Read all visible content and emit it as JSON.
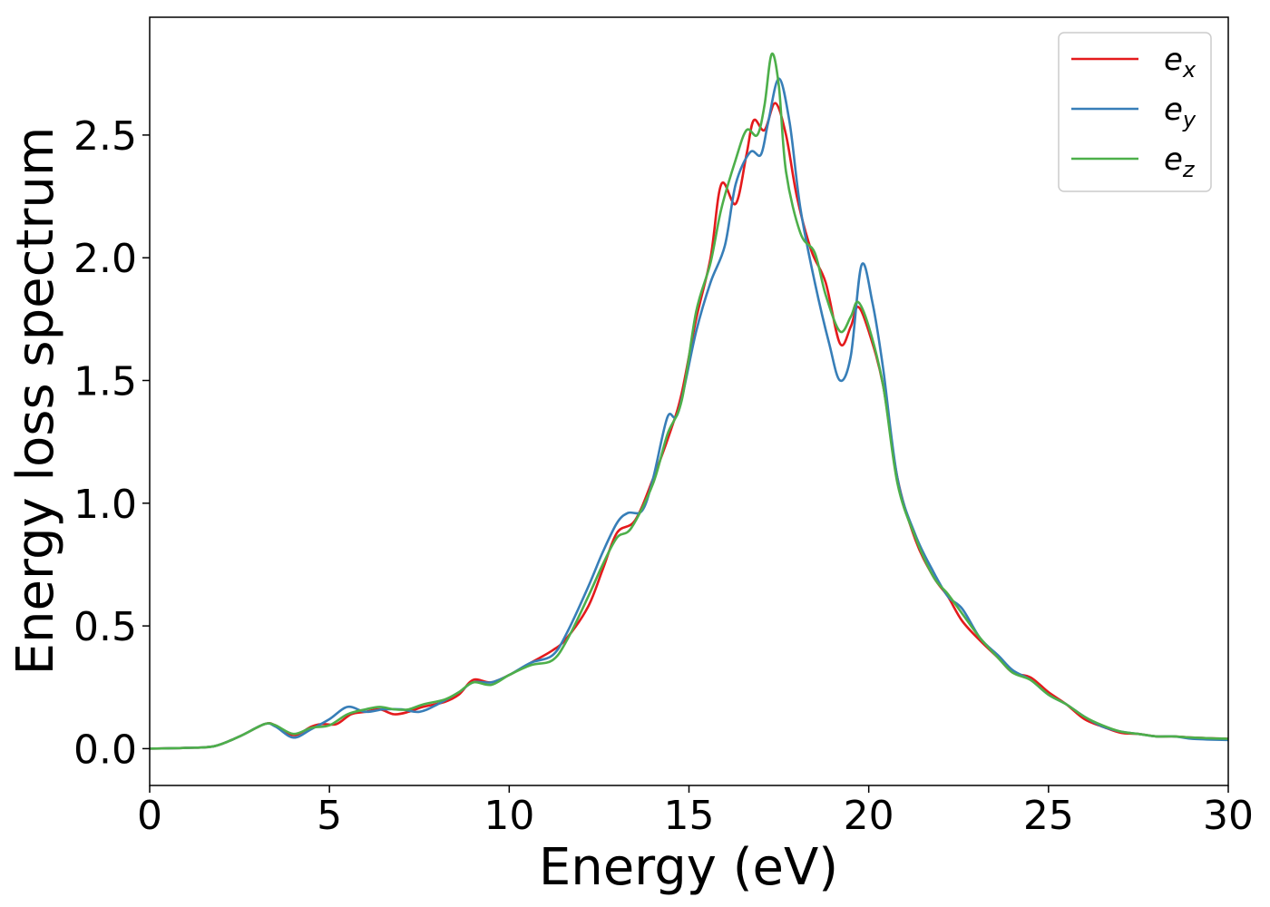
{
  "chart_data": {
    "type": "line",
    "xlabel": "Energy (eV)",
    "ylabel": "Energy loss spectrum",
    "xlim": [
      0,
      30
    ],
    "ylim": [
      -0.15,
      2.98
    ],
    "xticks": [
      0,
      5,
      10,
      15,
      20,
      25,
      30
    ],
    "xtick_labels": [
      "0",
      "5",
      "10",
      "15",
      "20",
      "25",
      "30"
    ],
    "yticks": [
      0.0,
      0.5,
      1.0,
      1.5,
      2.0,
      2.5
    ],
    "ytick_labels": [
      "0.0",
      "0.5",
      "1.0",
      "1.5",
      "2.0",
      "2.5"
    ],
    "grid": false,
    "legend_position": "top-right",
    "series": [
      {
        "name_base": "e",
        "name_sub": "x",
        "color": "#e41a1c",
        "points": [
          [
            0,
            0
          ],
          [
            1,
            0.003
          ],
          [
            1.8,
            0.01
          ],
          [
            2.5,
            0.05
          ],
          [
            3.2,
            0.1
          ],
          [
            3.5,
            0.095
          ],
          [
            4,
            0.055
          ],
          [
            4.5,
            0.09
          ],
          [
            4.8,
            0.1
          ],
          [
            5.2,
            0.1
          ],
          [
            5.6,
            0.14
          ],
          [
            6,
            0.15
          ],
          [
            6.4,
            0.16
          ],
          [
            6.8,
            0.14
          ],
          [
            7.2,
            0.15
          ],
          [
            7.6,
            0.17
          ],
          [
            8.2,
            0.19
          ],
          [
            8.6,
            0.22
          ],
          [
            9,
            0.28
          ],
          [
            9.5,
            0.27
          ],
          [
            10,
            0.3
          ],
          [
            10.6,
            0.35
          ],
          [
            11.2,
            0.4
          ],
          [
            11.6,
            0.45
          ],
          [
            12.2,
            0.58
          ],
          [
            12.6,
            0.73
          ],
          [
            13,
            0.88
          ],
          [
            13.5,
            0.93
          ],
          [
            14,
            1.1
          ],
          [
            14.5,
            1.3
          ],
          [
            14.8,
            1.45
          ],
          [
            15.2,
            1.75
          ],
          [
            15.6,
            2.0
          ],
          [
            15.9,
            2.3
          ],
          [
            16.3,
            2.22
          ],
          [
            16.6,
            2.42
          ],
          [
            16.8,
            2.56
          ],
          [
            17.1,
            2.52
          ],
          [
            17.4,
            2.63
          ],
          [
            17.7,
            2.5
          ],
          [
            18,
            2.25
          ],
          [
            18.4,
            2.03
          ],
          [
            18.8,
            1.9
          ],
          [
            19.2,
            1.65
          ],
          [
            19.5,
            1.72
          ],
          [
            19.7,
            1.8
          ],
          [
            20,
            1.7
          ],
          [
            20.4,
            1.48
          ],
          [
            20.8,
            1.1
          ],
          [
            21.3,
            0.85
          ],
          [
            21.8,
            0.7
          ],
          [
            22.2,
            0.62
          ],
          [
            22.6,
            0.52
          ],
          [
            23.1,
            0.44
          ],
          [
            23.6,
            0.37
          ],
          [
            24,
            0.31
          ],
          [
            24.5,
            0.29
          ],
          [
            25,
            0.23
          ],
          [
            25.5,
            0.18
          ],
          [
            26,
            0.12
          ],
          [
            26.5,
            0.09
          ],
          [
            27,
            0.065
          ],
          [
            27.5,
            0.06
          ],
          [
            28,
            0.05
          ],
          [
            28.5,
            0.05
          ],
          [
            29,
            0.045
          ],
          [
            30,
            0.04
          ]
        ]
      },
      {
        "name_base": "e",
        "name_sub": "y",
        "color": "#377eb8",
        "points": [
          [
            0,
            0
          ],
          [
            1,
            0.003
          ],
          [
            1.8,
            0.01
          ],
          [
            2.5,
            0.05
          ],
          [
            3.2,
            0.1
          ],
          [
            3.5,
            0.09
          ],
          [
            4,
            0.045
          ],
          [
            4.5,
            0.08
          ],
          [
            5,
            0.12
          ],
          [
            5.5,
            0.17
          ],
          [
            6,
            0.15
          ],
          [
            6.5,
            0.16
          ],
          [
            7,
            0.16
          ],
          [
            7.5,
            0.15
          ],
          [
            8,
            0.18
          ],
          [
            8.6,
            0.23
          ],
          [
            9,
            0.27
          ],
          [
            9.5,
            0.27
          ],
          [
            10,
            0.3
          ],
          [
            10.6,
            0.35
          ],
          [
            11.2,
            0.38
          ],
          [
            11.6,
            0.47
          ],
          [
            12.2,
            0.66
          ],
          [
            12.6,
            0.8
          ],
          [
            13,
            0.92
          ],
          [
            13.3,
            0.96
          ],
          [
            13.7,
            0.97
          ],
          [
            14,
            1.1
          ],
          [
            14.4,
            1.35
          ],
          [
            14.7,
            1.37
          ],
          [
            15.2,
            1.7
          ],
          [
            15.6,
            1.9
          ],
          [
            16,
            2.05
          ],
          [
            16.3,
            2.3
          ],
          [
            16.7,
            2.43
          ],
          [
            17,
            2.42
          ],
          [
            17.2,
            2.55
          ],
          [
            17.5,
            2.73
          ],
          [
            17.8,
            2.55
          ],
          [
            18.1,
            2.2
          ],
          [
            18.5,
            1.9
          ],
          [
            18.9,
            1.65
          ],
          [
            19.2,
            1.5
          ],
          [
            19.5,
            1.6
          ],
          [
            19.8,
            1.97
          ],
          [
            20.1,
            1.82
          ],
          [
            20.4,
            1.55
          ],
          [
            20.8,
            1.1
          ],
          [
            21.3,
            0.87
          ],
          [
            21.8,
            0.72
          ],
          [
            22.2,
            0.62
          ],
          [
            22.6,
            0.57
          ],
          [
            23.1,
            0.45
          ],
          [
            23.6,
            0.38
          ],
          [
            24,
            0.32
          ],
          [
            24.5,
            0.28
          ],
          [
            25,
            0.22
          ],
          [
            25.5,
            0.18
          ],
          [
            26,
            0.13
          ],
          [
            26.5,
            0.09
          ],
          [
            27,
            0.07
          ],
          [
            27.5,
            0.06
          ],
          [
            28,
            0.05
          ],
          [
            28.5,
            0.05
          ],
          [
            29,
            0.04
          ],
          [
            30,
            0.035
          ]
        ]
      },
      {
        "name_base": "e",
        "name_sub": "z",
        "color": "#4daf4a",
        "points": [
          [
            0,
            0
          ],
          [
            1,
            0.003
          ],
          [
            1.8,
            0.01
          ],
          [
            2.5,
            0.05
          ],
          [
            3.2,
            0.1
          ],
          [
            3.5,
            0.095
          ],
          [
            4,
            0.06
          ],
          [
            4.5,
            0.085
          ],
          [
            5,
            0.095
          ],
          [
            5.5,
            0.14
          ],
          [
            6,
            0.16
          ],
          [
            6.4,
            0.17
          ],
          [
            6.8,
            0.16
          ],
          [
            7.2,
            0.16
          ],
          [
            7.6,
            0.18
          ],
          [
            8.2,
            0.2
          ],
          [
            8.6,
            0.23
          ],
          [
            9,
            0.27
          ],
          [
            9.5,
            0.26
          ],
          [
            10,
            0.3
          ],
          [
            10.6,
            0.34
          ],
          [
            11.2,
            0.36
          ],
          [
            11.6,
            0.44
          ],
          [
            12.2,
            0.62
          ],
          [
            12.6,
            0.75
          ],
          [
            13,
            0.86
          ],
          [
            13.4,
            0.9
          ],
          [
            14,
            1.08
          ],
          [
            14.4,
            1.28
          ],
          [
            14.8,
            1.42
          ],
          [
            15.2,
            1.78
          ],
          [
            15.6,
            1.98
          ],
          [
            15.9,
            2.2
          ],
          [
            16.3,
            2.4
          ],
          [
            16.6,
            2.52
          ],
          [
            16.9,
            2.5
          ],
          [
            17.1,
            2.62
          ],
          [
            17.3,
            2.83
          ],
          [
            17.5,
            2.7
          ],
          [
            17.7,
            2.35
          ],
          [
            18.1,
            2.1
          ],
          [
            18.5,
            2.02
          ],
          [
            18.8,
            1.85
          ],
          [
            19.2,
            1.7
          ],
          [
            19.5,
            1.76
          ],
          [
            19.7,
            1.82
          ],
          [
            20,
            1.72
          ],
          [
            20.4,
            1.48
          ],
          [
            20.8,
            1.08
          ],
          [
            21.3,
            0.86
          ],
          [
            21.8,
            0.7
          ],
          [
            22.2,
            0.63
          ],
          [
            22.6,
            0.55
          ],
          [
            23.1,
            0.45
          ],
          [
            23.6,
            0.37
          ],
          [
            24,
            0.31
          ],
          [
            24.5,
            0.28
          ],
          [
            25,
            0.22
          ],
          [
            25.5,
            0.18
          ],
          [
            26,
            0.13
          ],
          [
            26.5,
            0.095
          ],
          [
            27,
            0.07
          ],
          [
            27.5,
            0.06
          ],
          [
            28,
            0.05
          ],
          [
            28.5,
            0.05
          ],
          [
            29,
            0.045
          ],
          [
            30,
            0.04
          ]
        ]
      }
    ]
  }
}
